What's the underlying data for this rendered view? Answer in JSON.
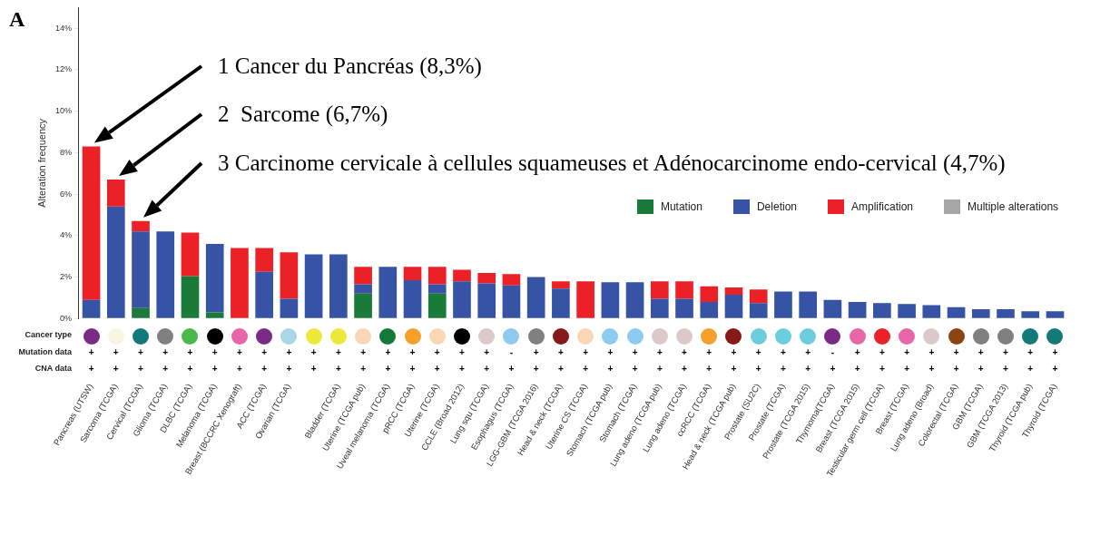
{
  "chart_data": {
    "type": "bar",
    "stacked": true,
    "ylabel": "Alteration frequency",
    "ylim": [
      0,
      15
    ],
    "yticks": [
      {
        "value": 0,
        "label": "0%"
      },
      {
        "value": 2,
        "label": "2%"
      },
      {
        "value": 4,
        "label": "4%"
      },
      {
        "value": 6,
        "label": "6%"
      },
      {
        "value": 8,
        "label": "8%"
      },
      {
        "value": 10,
        "label": "10%"
      },
      {
        "value": 12,
        "label": "12%"
      },
      {
        "value": 14,
        "label": "14%"
      }
    ],
    "legend": "right",
    "categories": [
      "Pancreas (UTSW)",
      "Sarcoma (TCGA)",
      "Cervical (TCGA)",
      "Glioma (TCGA)",
      "DLBC (TCGA)",
      "Melanoma (TCGA)",
      "Breast (BCCRC Xenograft)",
      "ACC (TCGA)",
      "Ovarian (TCGA)",
      null,
      "Bladder (TCGA)",
      "Uterine (TCGA pub)",
      "Uveal melanoma (TCGA)",
      "pRCC (TCGA)",
      "Uterine (TCGA)",
      "CCLE (Broad 2012)",
      "Lung squ (TCGA)",
      "Esophagus (TCGA)",
      "LGG-GBM (TCGA 2016)",
      "Head & neck (TCGA)",
      "Uterine CS (TCGA)",
      "Stomach (TCGA pub)",
      "Stomach (TCGA)",
      "Lung adeno (TCGA pub)",
      "Lung adeno (TCGA)",
      "ccRCC (TCGA)",
      "Head & neck (TCGA pub)",
      "Prostate (SU2C)",
      "Prostate (TCGA)",
      "Prostate (TCGA 2015)",
      "Thymoma(TCGA)",
      "Breast (TCGA 2015)",
      "Testicular germ cell (TCGA)",
      "Breast (TCGA)",
      "Lung adeno (Broad)",
      "Colorectal (TCGA)",
      "GBM (TCGA)",
      "GBM (TCGA 2013)",
      "Thyroid (TCGA pub)",
      "Thyroid (TCGA)"
    ],
    "series": [
      {
        "name": "Mutation",
        "color": "#1a7a3a",
        "values": [
          0,
          0,
          0.5,
          0,
          2.05,
          0.3,
          0,
          0,
          0,
          0,
          0,
          1.2,
          0,
          0,
          1.2,
          0,
          0,
          0,
          0,
          0,
          0,
          0,
          0,
          0,
          0,
          0,
          0,
          0,
          0,
          0,
          0,
          0,
          0,
          0,
          0,
          0,
          0,
          0,
          0,
          0
        ]
      },
      {
        "name": "Deletion",
        "color": "#3653a5",
        "values": [
          0.9,
          5.4,
          3.7,
          4.2,
          0,
          3.3,
          0,
          2.25,
          0.95,
          3.1,
          3.1,
          0.45,
          2.5,
          1.85,
          0.45,
          1.8,
          1.7,
          1.6,
          2.0,
          1.45,
          0,
          1.75,
          1.75,
          0.95,
          0.95,
          0.8,
          1.15,
          0.75,
          1.3,
          1.3,
          0.9,
          0.8,
          0.75,
          0.7,
          0.65,
          0.55,
          0.45,
          0.45,
          0.35,
          0.35
        ]
      },
      {
        "name": "Amplification",
        "color": "#ec2127",
        "values": [
          7.4,
          1.3,
          0.5,
          0,
          2.1,
          0,
          3.4,
          1.15,
          2.25,
          0,
          0,
          0.85,
          0,
          0.65,
          0.85,
          0.55,
          0.5,
          0.55,
          0,
          0.35,
          1.8,
          0,
          0,
          0.85,
          0.85,
          0.75,
          0.35,
          0.65,
          0,
          0,
          0,
          0,
          0,
          0,
          0,
          0,
          0,
          0,
          0,
          0
        ]
      },
      {
        "name": "Multiple alterations",
        "color": "#a6a6a6",
        "values": [
          0,
          0,
          0,
          0,
          0,
          0,
          0,
          0,
          0,
          0,
          0,
          0,
          0,
          0,
          0,
          0,
          0,
          0,
          0,
          0,
          0,
          0,
          0,
          0,
          0,
          0,
          0,
          0,
          0,
          0,
          0,
          0,
          0,
          0,
          0,
          0,
          0,
          0,
          0,
          0
        ]
      }
    ],
    "annotations": [
      "A",
      "1 Cancer du Pancréas (8,3%)",
      "2  Sarcome (6,7%)",
      "3 Carcinome cervicale à cellules squameuses et Adénocarcinome endo-cervical (4,7%)",
      "Cancer type",
      "Mutation data",
      "CNA data",
      "+",
      "+",
      "+",
      "+",
      "+",
      "+",
      "+",
      "+",
      "+",
      "+",
      "+",
      "+",
      "+",
      "+",
      "+",
      "+",
      "+",
      "-",
      "+",
      "+",
      "+",
      "+",
      "+",
      "+",
      "+",
      "+",
      "+",
      "+",
      "+",
      "+",
      "-",
      "+",
      "+",
      "+",
      "+",
      "+",
      "+",
      "+",
      "+",
      "+",
      "+",
      "+",
      "+",
      "+",
      "+",
      "+",
      "+",
      "+",
      "+",
      "+",
      "+",
      "+",
      "+",
      "+",
      "+",
      "+",
      "+",
      "+",
      "+",
      "+",
      "+",
      "+",
      "+",
      "+",
      "+",
      "+",
      "+",
      "+",
      "+",
      "+",
      "+",
      "+",
      "+",
      "+",
      "+",
      "+",
      "+",
      "+",
      "+",
      "+"
    ]
  }
}
